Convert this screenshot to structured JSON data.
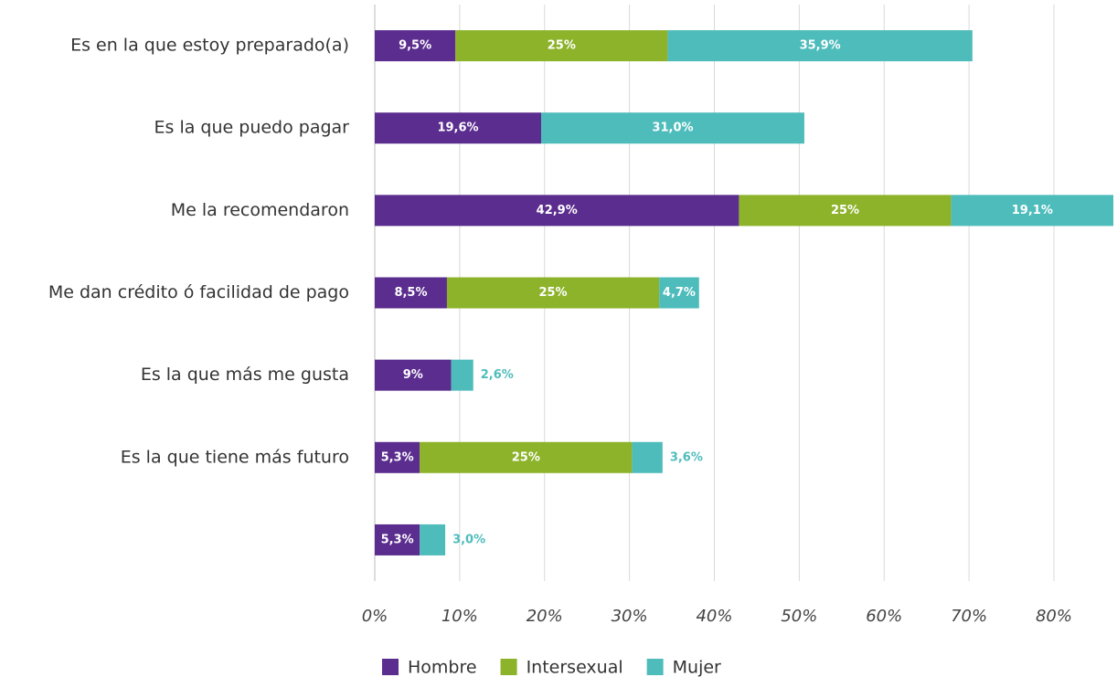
{
  "chart_data": {
    "type": "bar",
    "orientation": "horizontal",
    "stacked": true,
    "categories": [
      "Es en la que estoy preparado(a)",
      "Es la que puedo pagar",
      "Me la recomendaron",
      "Me dan crédito ó facilidad de pago",
      "Es la que más me gusta ",
      "Es la que tiene más futuro",
      null
    ],
    "series": [
      {
        "name": "Hombre",
        "color": "#5b2d8e",
        "values": [
          9.5,
          19.6,
          42.9,
          8.5,
          9,
          5.3,
          5.3
        ],
        "value_labels": [
          "9,5%",
          "19,6%",
          "42,9%",
          "8,5%",
          "9%",
          "5,3%",
          "5,3%"
        ]
      },
      {
        "name": "Intersexual",
        "color": "#8db32b",
        "values": [
          25,
          null,
          25,
          25,
          null,
          25,
          null
        ],
        "value_labels": [
          "25%",
          null,
          "25%",
          "25%",
          null,
          "25%",
          null
        ]
      },
      {
        "name": "Mujer",
        "color": "#4fbcbc",
        "values": [
          35.9,
          31.0,
          19.1,
          4.7,
          2.6,
          3.6,
          3.0
        ],
        "value_labels": [
          "35,9%",
          "31,0%",
          "19,1%",
          "4,7%",
          "2,6%",
          "3,6%",
          "3,0%"
        ]
      }
    ],
    "xlim": [
      0,
      87
    ],
    "xticks": [
      {
        "value": 0,
        "label": "0%"
      },
      {
        "value": 10,
        "label": "10%"
      },
      {
        "value": 20,
        "label": "20%"
      },
      {
        "value": 30,
        "label": "30%"
      },
      {
        "value": 40,
        "label": "40%"
      },
      {
        "value": 50,
        "label": "50%"
      },
      {
        "value": 60,
        "label": "60%"
      },
      {
        "value": 70,
        "label": "70%"
      },
      {
        "value": 80,
        "label": "80%"
      }
    ],
    "grid": true,
    "legend": "bottom"
  }
}
